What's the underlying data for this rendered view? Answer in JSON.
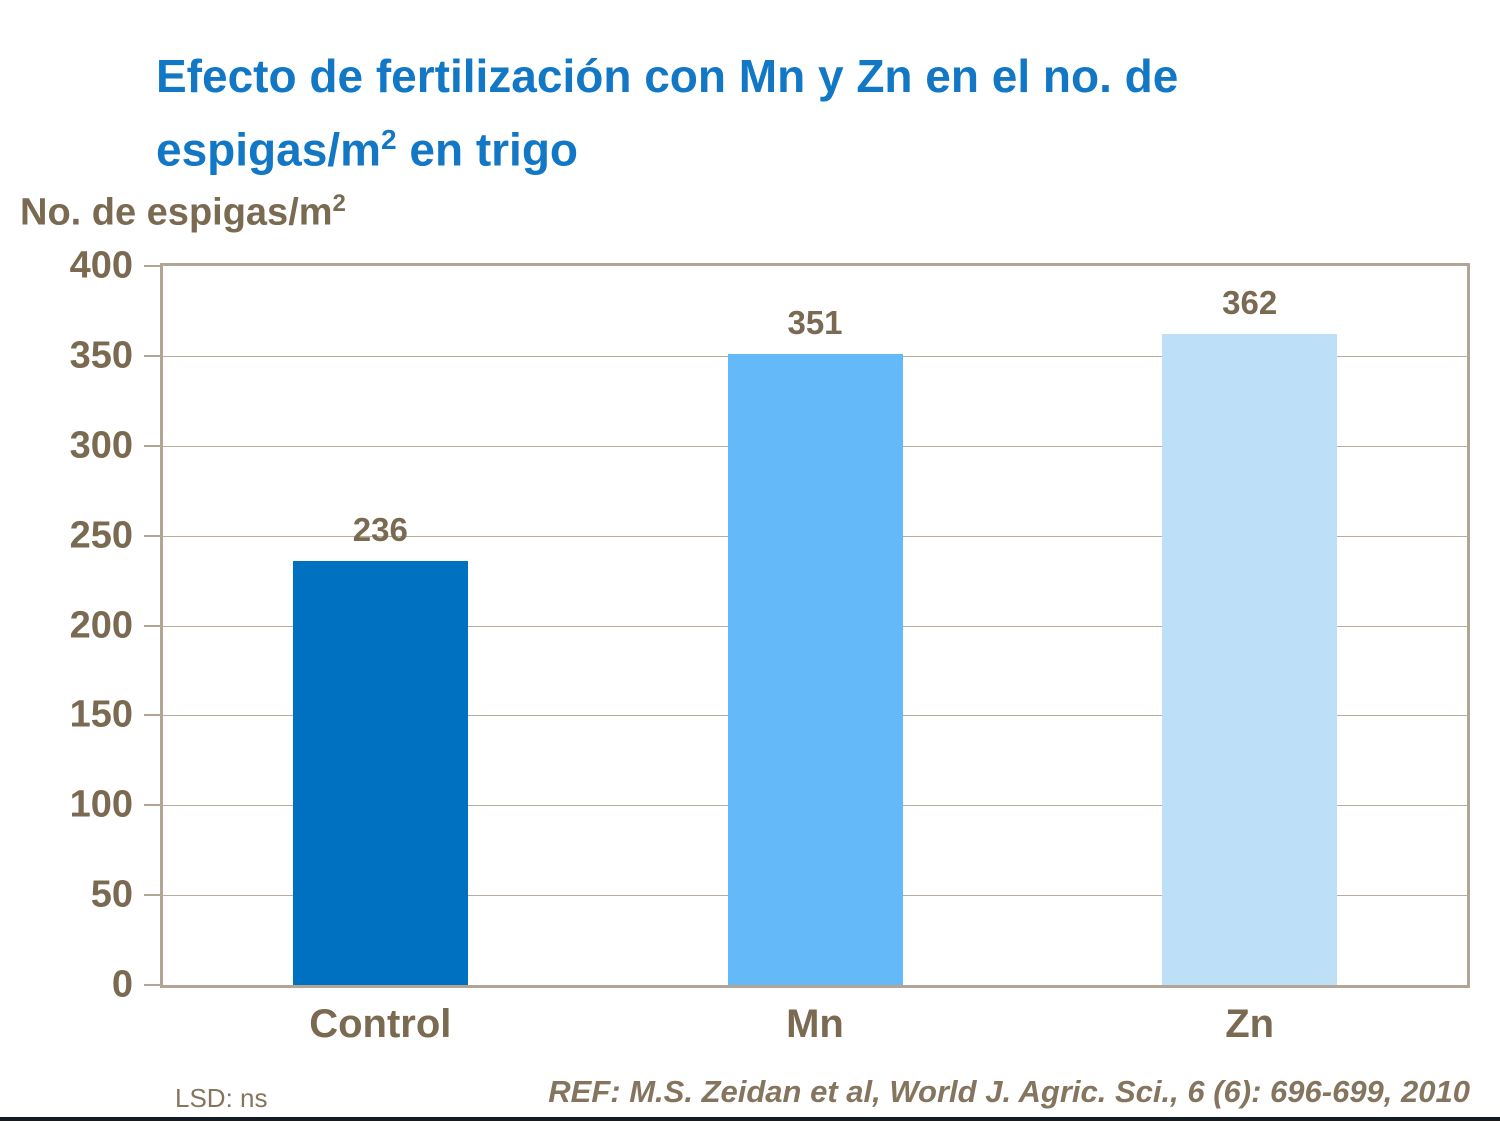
{
  "chart_data": {
    "type": "bar",
    "title": "Efecto de fertilización con Mn y Zn en el no. de espigas/m2 en trigo",
    "categories": [
      "Control",
      "Mn",
      "Zn"
    ],
    "values": [
      236,
      351,
      362
    ],
    "bar_colors": [
      "#0070C0",
      "#64BAF8",
      "#BDDFF8"
    ],
    "xlabel": "",
    "ylabel": "No. de espigas/m2",
    "ylim": [
      0,
      400
    ],
    "yticks": [
      400,
      350,
      300,
      250,
      200,
      150,
      100,
      50,
      0
    ],
    "grid": true,
    "legend": false
  },
  "title": {
    "line1": "Efecto de fertilización con Mn y Zn en el no. de",
    "line2_pre": "espigas/m",
    "line2_sup": "2",
    "line2_post": " en trigo"
  },
  "axis": {
    "ylabel_pre": "No. de espigas/m",
    "ylabel_sup": "2"
  },
  "footer": {
    "lsd": "LSD: ns",
    "ref": "REF: M.S. Zeidan et al, World J. Agric. Sci., 6 (6): 696-699, 2010"
  },
  "colors": {
    "title_blue": "#1277C4",
    "text_brown": "#7A6A52",
    "footer_text": "#85755E",
    "plot_border": "#B2A595",
    "gridline": "#B9AC9C",
    "bottom_rule": "#141C26",
    "background": "#FFFFFF"
  }
}
